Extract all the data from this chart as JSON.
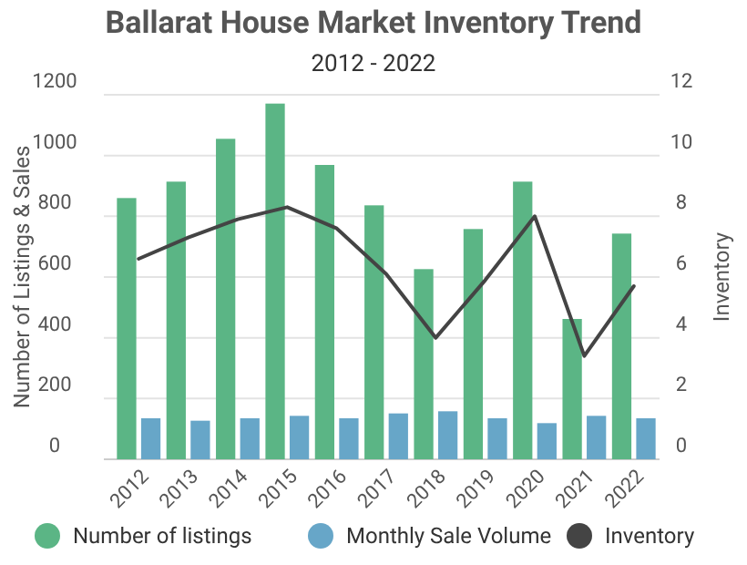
{
  "chart_data": {
    "type": "bar",
    "title": "Ballarat House Market Inventory Trend",
    "subtitle": "2012 - 2022",
    "ylabel": "Number of Listings & Sales",
    "y2label": "Inventory",
    "categories": [
      "2012",
      "2013",
      "2014",
      "2015",
      "2016",
      "2017",
      "2018",
      "2019",
      "2020",
      "2021",
      "2022"
    ],
    "series": [
      {
        "name": "Number of listings",
        "color": "#5bb585",
        "values": [
          860,
          914,
          1055,
          1171,
          969,
          836,
          626,
          758,
          914,
          462,
          743
        ]
      },
      {
        "name": "Monthly Sale Volume",
        "color": "#67a6c8",
        "values": [
          135,
          127,
          135,
          143,
          135,
          151,
          158,
          135,
          119,
          143,
          135
        ]
      },
      {
        "name": "Inventory",
        "type": "line",
        "axis": "y2",
        "color": "#444444",
        "values": [
          6.6,
          7.3,
          7.9,
          8.3,
          7.6,
          6.1,
          4.0,
          5.9,
          8.0,
          3.4,
          5.7
        ]
      }
    ],
    "ylim": [
      0,
      1200
    ],
    "yticks": [
      0,
      200,
      400,
      600,
      800,
      1000,
      1200
    ],
    "y2lim": [
      0,
      12
    ],
    "y2ticks": [
      0,
      2,
      4,
      6,
      8,
      10,
      12
    ],
    "grid": "y",
    "legend": "bottom",
    "marker": "none"
  }
}
